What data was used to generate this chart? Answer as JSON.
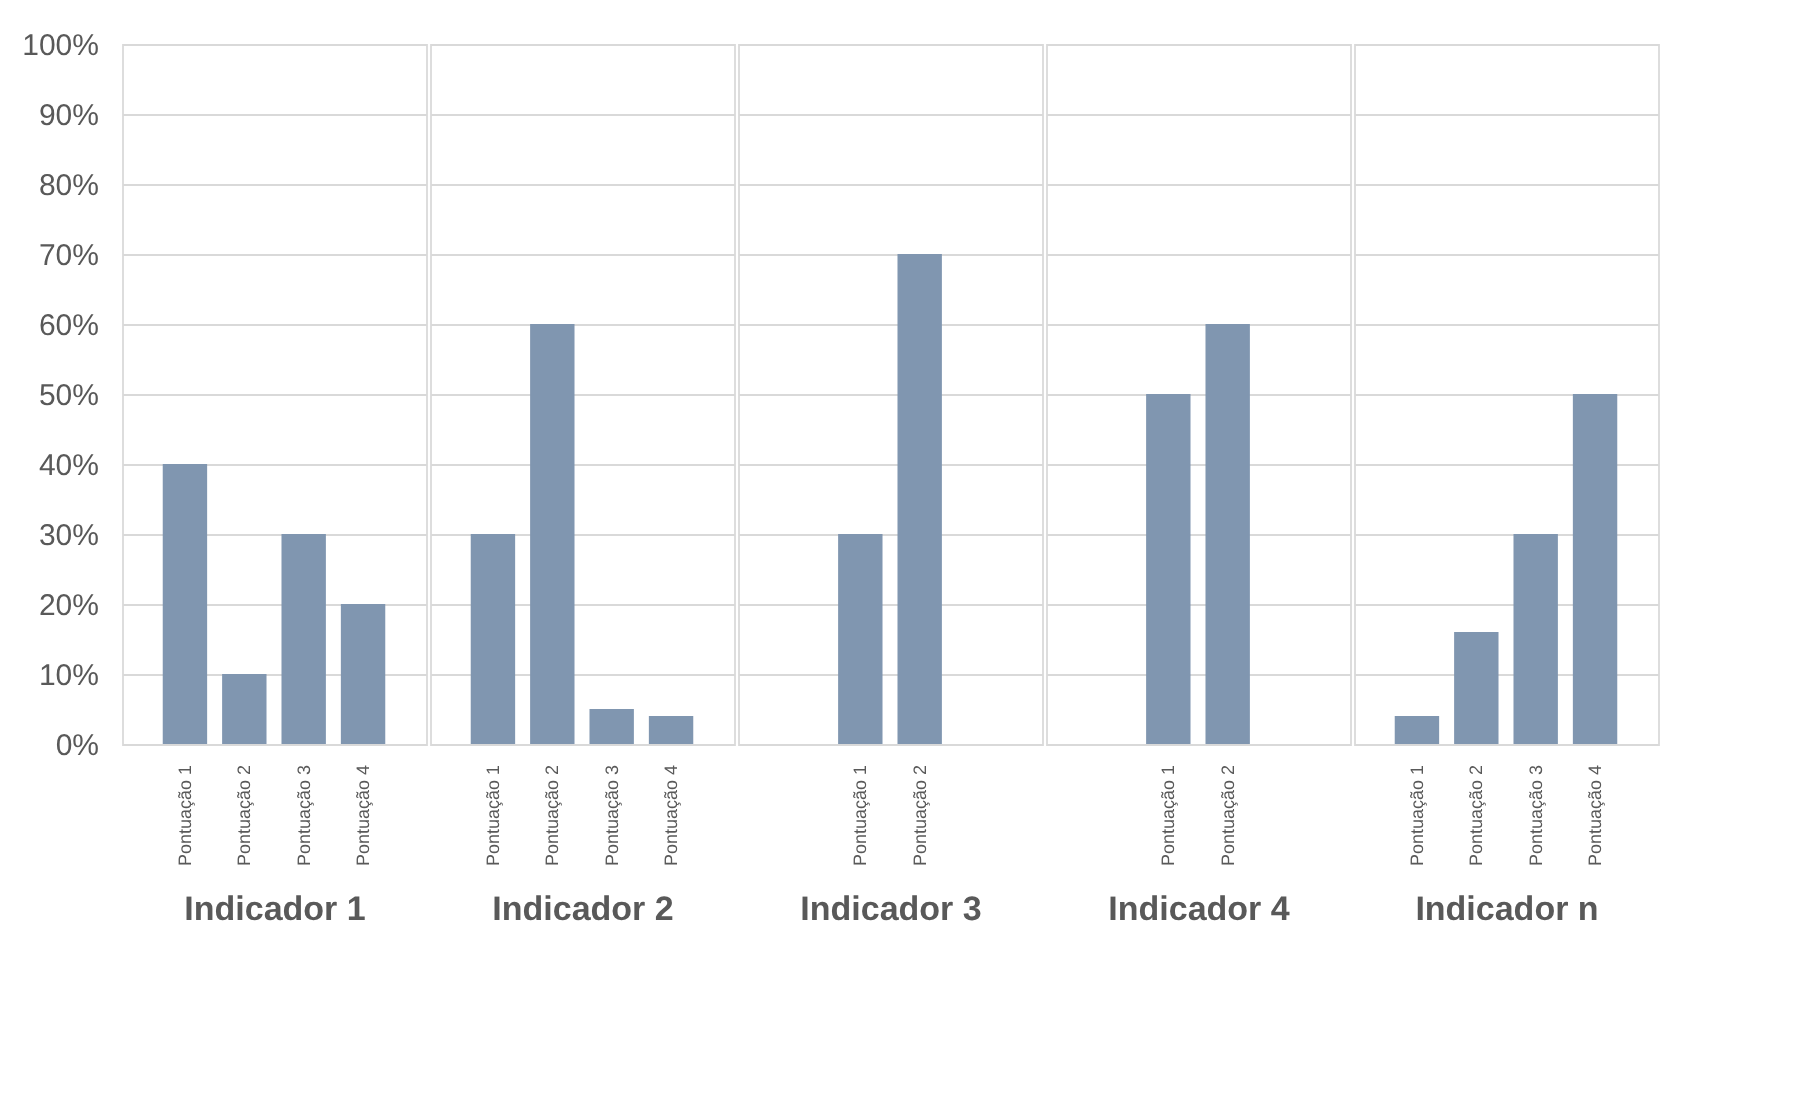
{
  "chart_data": [
    {
      "type": "bar",
      "xlabel": "Indicador 1",
      "categories": [
        "Pontuação 1",
        "Pontuação 2",
        "Pontuação 3",
        "Pontuação 4"
      ],
      "values": [
        40,
        10,
        30,
        20
      ],
      "color": "#8096b0",
      "ylim": [
        0,
        100
      ],
      "yticks": [
        {
          "value": 0,
          "label": "0%"
        },
        {
          "value": 10,
          "label": "10%"
        },
        {
          "value": 20,
          "label": "20%"
        },
        {
          "value": 30,
          "label": "30%"
        },
        {
          "value": 40,
          "label": "40%"
        },
        {
          "value": 50,
          "label": "50%"
        },
        {
          "value": 60,
          "label": "60%"
        },
        {
          "value": 70,
          "label": "70%"
        },
        {
          "value": 80,
          "label": "80%"
        },
        {
          "value": 90,
          "label": "90%"
        },
        {
          "value": 100,
          "label": "100%"
        }
      ],
      "grid": true
    },
    {
      "type": "bar",
      "xlabel": "Indicador 2",
      "categories": [
        "Pontuação 1",
        "Pontuação 2",
        "Pontuação 3",
        "Pontuação 4"
      ],
      "values": [
        30,
        60,
        5,
        4
      ],
      "color": "#8096b0",
      "ylim": [
        0,
        100
      ],
      "yticks": [
        0,
        10,
        20,
        30,
        40,
        50,
        60,
        70,
        80,
        90,
        100
      ],
      "grid": true,
      "tick_labels": "x"
    },
    {
      "type": "bar",
      "xlabel": "Indicador 3",
      "categories": [
        "Pontuação 1",
        "Pontuação 2"
      ],
      "values": [
        30,
        70
      ],
      "color": "#8096b0",
      "ylim": [
        0,
        100
      ],
      "yticks": [
        0,
        10,
        20,
        30,
        40,
        50,
        60,
        70,
        80,
        90,
        100
      ],
      "grid": true,
      "tick_labels": "x"
    },
    {
      "type": "bar",
      "xlabel": "Indicador 4",
      "categories": [
        "Pontuação 1",
        "Pontuação 2"
      ],
      "values": [
        50,
        60
      ],
      "color": "#8096b0",
      "ylim": [
        0,
        100
      ],
      "yticks": [
        0,
        10,
        20,
        30,
        40,
        50,
        60,
        70,
        80,
        90,
        100
      ],
      "grid": true,
      "tick_labels": "x"
    },
    {
      "type": "bar",
      "xlabel": "Indicador n",
      "categories": [
        "Pontuação 1",
        "Pontuação 2",
        "Pontuação 3",
        "Pontuação 4"
      ],
      "values": [
        4,
        16,
        30,
        50
      ],
      "color": "#8096b0",
      "ylim": [
        0,
        100
      ],
      "yticks": [
        0,
        10,
        20,
        30,
        40,
        50,
        60,
        70,
        80,
        90,
        100
      ],
      "grid": true,
      "tick_labels": "x"
    }
  ]
}
